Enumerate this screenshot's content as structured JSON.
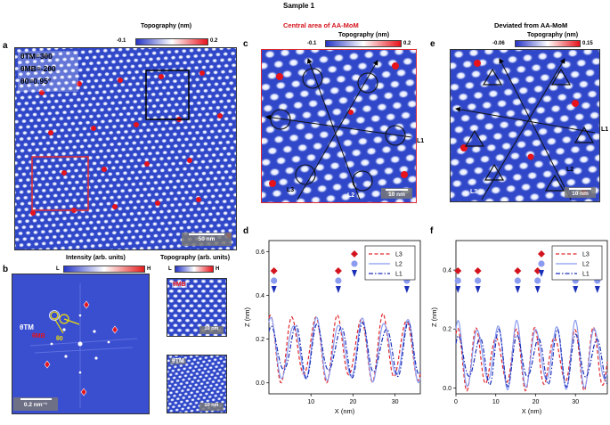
{
  "sample_title": "Sample 1",
  "panel_a": {
    "label": "a",
    "cbar_title": "Topography (nm)",
    "cbar_min": "-0.1",
    "cbar_max": "0.2",
    "theta_tm": "θTM=3θ0",
    "theta_mb": "θMB=-2θ0",
    "theta_0": "θ0=0.95°",
    "scale": "50 nm",
    "colors": {
      "red_box": "#e0282e",
      "black_box": "#000000"
    }
  },
  "panel_b": {
    "label": "b",
    "cbar_title": "Intensity (arb. units)",
    "cbar_low": "L",
    "cbar_high": "H",
    "theta_tm": "θTM",
    "theta_mb": "θMB",
    "theta_0": "θ0",
    "scale": "0.2 nm⁻¹"
  },
  "panel_b_side": {
    "title": "Topography (arb. units)",
    "cbar_low": "L",
    "cbar_high": "H",
    "top_label": "θMB",
    "top_scale": "10 nm",
    "bottom_label": "θTM",
    "bottom_scale": "10 nm"
  },
  "panel_c": {
    "label": "c",
    "heading": "Central area of AA-MoM",
    "cbar_title": "Topography (nm)",
    "cbar_min": "-0.1",
    "cbar_max": "0.2",
    "line_labels": [
      "L1",
      "L2",
      "L3"
    ],
    "scale": "10 nm",
    "heading_color": "#d4141d"
  },
  "panel_e": {
    "label": "e",
    "heading": "Deviated from AA-MoM",
    "cbar_title": "Topography (nm)",
    "cbar_min": "-0.06",
    "cbar_max": "0.15",
    "line_labels": [
      "L1",
      "L2",
      "L3"
    ],
    "scale": "10 nm"
  },
  "panel_d": {
    "label": "d",
    "ylabel": "Z (nm)",
    "xlabel": "X (nm)",
    "xticks": [
      "10",
      "20",
      "30"
    ],
    "yticks": [
      "0.0",
      "0.2",
      "0.4",
      "0.6"
    ],
    "legend": [
      "L3",
      "L2",
      "L1"
    ],
    "xlim": [
      0,
      36
    ],
    "ylim": [
      -0.05,
      0.65
    ]
  },
  "panel_f": {
    "label": "f",
    "ylabel": "Z (nm)",
    "xlabel": "X (nm)",
    "xticks": [
      "0",
      "10",
      "20",
      "30"
    ],
    "yticks": [
      "0.0",
      "0.2",
      "0.4"
    ],
    "legend": [
      "L3",
      "L2",
      "L1"
    ],
    "xlim": [
      0,
      38
    ],
    "ylim": [
      -0.02,
      0.5
    ]
  },
  "chart_data": [
    {
      "type": "line",
      "panel": "d",
      "xlabel": "X (nm)",
      "ylabel": "Z (nm)",
      "xlim": [
        0,
        36
      ],
      "ylim": [
        -0.05,
        0.65
      ],
      "series": [
        {
          "name": "L3",
          "color": "#e0282e",
          "style": "dashed",
          "period": 5.4,
          "phase": 0.2,
          "amp": 0.14,
          "offset": 0.16
        },
        {
          "name": "L2",
          "color": "#8a9bf0",
          "style": "solid",
          "period": 5.4,
          "phase": 0.5,
          "amp": 0.13,
          "offset": 0.15
        },
        {
          "name": "L1",
          "color": "#1a2fb8",
          "style": "dashdot",
          "period": 5.4,
          "phase": 0.8,
          "amp": 0.11,
          "offset": 0.15
        }
      ]
    },
    {
      "type": "line",
      "panel": "f",
      "xlabel": "X (nm)",
      "ylabel": "Z (nm)",
      "xlim": [
        0,
        38
      ],
      "ylim": [
        -0.02,
        0.5
      ],
      "series": [
        {
          "name": "L3",
          "color": "#e0282e",
          "style": "dashed",
          "period": 4.9,
          "phase": 0.3,
          "amp": 0.09,
          "offset": 0.1
        },
        {
          "name": "L2",
          "color": "#8a9bf0",
          "style": "solid",
          "period": 4.9,
          "phase": 0.6,
          "amp": 0.1,
          "offset": 0.11
        },
        {
          "name": "L1",
          "color": "#1a2fb8",
          "style": "dashdot",
          "period": 4.9,
          "phase": 0.9,
          "amp": 0.08,
          "offset": 0.1
        }
      ]
    }
  ]
}
